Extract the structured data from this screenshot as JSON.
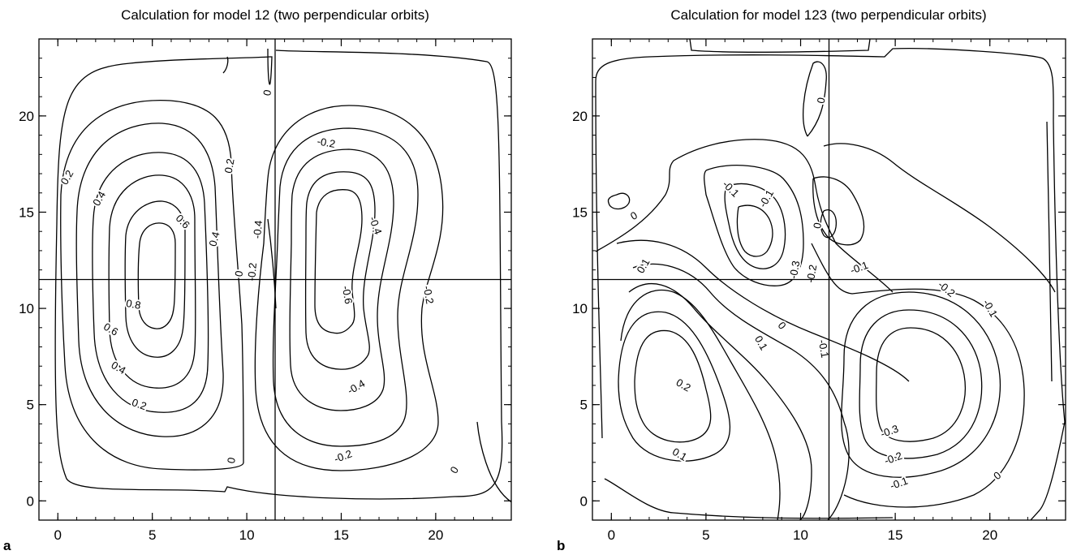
{
  "chart_data": [
    {
      "type": "contour",
      "panel_label": "a",
      "title": "Calculation for model 12 (two perpendicular orbits)",
      "xlim": [
        -1,
        24
      ],
      "ylim": [
        -1,
        24
      ],
      "x_ticks": [
        0,
        5,
        10,
        15,
        20
      ],
      "y_ticks": [
        0,
        5,
        10,
        15,
        20
      ],
      "x_tick_labels": [
        "0",
        "5",
        "10",
        "15",
        "20"
      ],
      "y_tick_labels": [
        "0",
        "5",
        "10",
        "15",
        "20"
      ],
      "minor_tick_step": 1,
      "crosshair": {
        "x": 11.5,
        "y": 11.5
      },
      "grid": false,
      "contour_levels": [
        -0.6,
        -0.4,
        -0.2,
        0,
        0.2,
        0.4,
        0.6,
        0.8
      ],
      "contour_labels": [
        {
          "text": "0.2",
          "x": 0.5,
          "y": 16.8,
          "rotate": -60
        },
        {
          "text": "0.4",
          "x": 2.2,
          "y": 15.7,
          "rotate": -60
        },
        {
          "text": "0.6",
          "x": 6.6,
          "y": 14.5,
          "rotate": 45
        },
        {
          "text": "0.4",
          "x": 8.3,
          "y": 13.6,
          "rotate": -75
        },
        {
          "text": "0.2",
          "x": 9.1,
          "y": 17.4,
          "rotate": -80
        },
        {
          "text": "0",
          "x": 9.6,
          "y": 11.8,
          "rotate": -80
        },
        {
          "text": "-0.2",
          "x": 10.3,
          "y": 11.9,
          "rotate": -85
        },
        {
          "text": "-0.4",
          "x": 10.6,
          "y": 14.1,
          "rotate": -85
        },
        {
          "text": "0",
          "x": 11.1,
          "y": 21.2,
          "rotate": -80
        },
        {
          "text": "-0.2",
          "x": 14.2,
          "y": 18.6,
          "rotate": 10
        },
        {
          "text": "-0.4",
          "x": 16.8,
          "y": 14.3,
          "rotate": 70
        },
        {
          "text": "-0.6",
          "x": 15.3,
          "y": 10.7,
          "rotate": 80
        },
        {
          "text": "-0.2",
          "x": 19.6,
          "y": 10.7,
          "rotate": 80
        },
        {
          "text": "0.8",
          "x": 4.0,
          "y": 10.2,
          "rotate": 10
        },
        {
          "text": "0.6",
          "x": 2.8,
          "y": 8.9,
          "rotate": 30
        },
        {
          "text": "0.4",
          "x": 3.2,
          "y": 6.9,
          "rotate": 30
        },
        {
          "text": "0.2",
          "x": 4.3,
          "y": 5.0,
          "rotate": 20
        },
        {
          "text": "-0.4",
          "x": 15.8,
          "y": 5.9,
          "rotate": -30
        },
        {
          "text": "-0.2",
          "x": 15.1,
          "y": 2.3,
          "rotate": -20
        },
        {
          "text": "0",
          "x": 9.2,
          "y": 2.1,
          "rotate": -80
        },
        {
          "text": "0",
          "x": 21.0,
          "y": 1.6,
          "rotate": -60
        }
      ]
    },
    {
      "type": "contour",
      "panel_label": "b",
      "title": "Calculation for model 123 (two perpendicular orbits)",
      "xlim": [
        -1,
        24
      ],
      "ylim": [
        -1,
        24
      ],
      "x_ticks": [
        0,
        5,
        10,
        15,
        20
      ],
      "y_ticks": [
        0,
        5,
        10,
        15,
        20
      ],
      "x_tick_labels": [
        "0",
        "5",
        "10",
        "15",
        "20"
      ],
      "y_tick_labels": [
        "0",
        "5",
        "10",
        "15",
        "20"
      ],
      "minor_tick_step": 1,
      "crosshair": {
        "x": 11.5,
        "y": 11.5
      },
      "grid": false,
      "contour_levels": [
        -0.3,
        -0.2,
        -0.1,
        0,
        0.1,
        0.2
      ],
      "contour_labels": [
        {
          "text": "0",
          "x": 11.1,
          "y": 20.8,
          "rotate": -80
        },
        {
          "text": "-0.1",
          "x": 6.3,
          "y": 16.2,
          "rotate": 45
        },
        {
          "text": "-0.1",
          "x": 8.2,
          "y": 15.7,
          "rotate": -60
        },
        {
          "text": "0",
          "x": 1.2,
          "y": 14.8,
          "rotate": -30
        },
        {
          "text": "0",
          "x": 10.9,
          "y": 14.3,
          "rotate": -80
        },
        {
          "text": "0.1",
          "x": 1.7,
          "y": 12.2,
          "rotate": -60
        },
        {
          "text": "-0.3",
          "x": 9.7,
          "y": 12.0,
          "rotate": -80
        },
        {
          "text": "-0.2",
          "x": 10.6,
          "y": 11.8,
          "rotate": -80
        },
        {
          "text": "-0.1",
          "x": 13.1,
          "y": 12.1,
          "rotate": -20
        },
        {
          "text": "-0.2",
          "x": 17.7,
          "y": 11.0,
          "rotate": 40
        },
        {
          "text": "-0.1",
          "x": 20.0,
          "y": 10.0,
          "rotate": 60
        },
        {
          "text": "0.1",
          "x": 7.9,
          "y": 8.2,
          "rotate": 60
        },
        {
          "text": "0",
          "x": 9.0,
          "y": 9.1,
          "rotate": 50
        },
        {
          "text": "-0.1",
          "x": 11.2,
          "y": 7.9,
          "rotate": 80
        },
        {
          "text": "0.2",
          "x": 3.8,
          "y": 6.0,
          "rotate": 30
        },
        {
          "text": "0.1",
          "x": 3.6,
          "y": 2.4,
          "rotate": 30
        },
        {
          "text": "-0.3",
          "x": 14.7,
          "y": 3.6,
          "rotate": -20
        },
        {
          "text": "-0.2",
          "x": 14.9,
          "y": 2.2,
          "rotate": -20
        },
        {
          "text": "-0.1",
          "x": 15.2,
          "y": 0.9,
          "rotate": -20
        },
        {
          "text": "0",
          "x": 20.4,
          "y": 1.3,
          "rotate": -40
        }
      ]
    }
  ]
}
